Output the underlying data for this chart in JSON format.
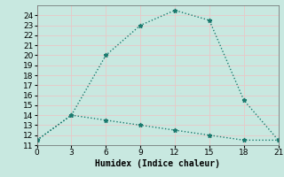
{
  "line1_x": [
    0,
    3,
    6,
    9,
    12,
    15,
    18,
    21
  ],
  "line1_y": [
    11.5,
    14.0,
    20.0,
    23.0,
    24.5,
    23.5,
    15.5,
    11.5
  ],
  "line2_x": [
    0,
    3,
    6,
    9,
    12,
    15,
    18,
    21
  ],
  "line2_y": [
    11.5,
    14.0,
    13.5,
    13.0,
    12.5,
    12.0,
    11.5,
    11.5
  ],
  "line_color": "#1a7a6e",
  "marker": "*",
  "xlabel": "Humidex (Indice chaleur)",
  "xlim": [
    0,
    21
  ],
  "ylim": [
    11,
    25
  ],
  "xticks": [
    0,
    3,
    6,
    9,
    12,
    15,
    18,
    21
  ],
  "yticks": [
    11,
    12,
    13,
    14,
    15,
    16,
    17,
    18,
    19,
    20,
    21,
    22,
    23,
    24
  ],
  "bg_color": "#c8e8e0",
  "grid_color": "#e8c8c8",
  "label_fontsize": 7,
  "tick_fontsize": 6.5
}
